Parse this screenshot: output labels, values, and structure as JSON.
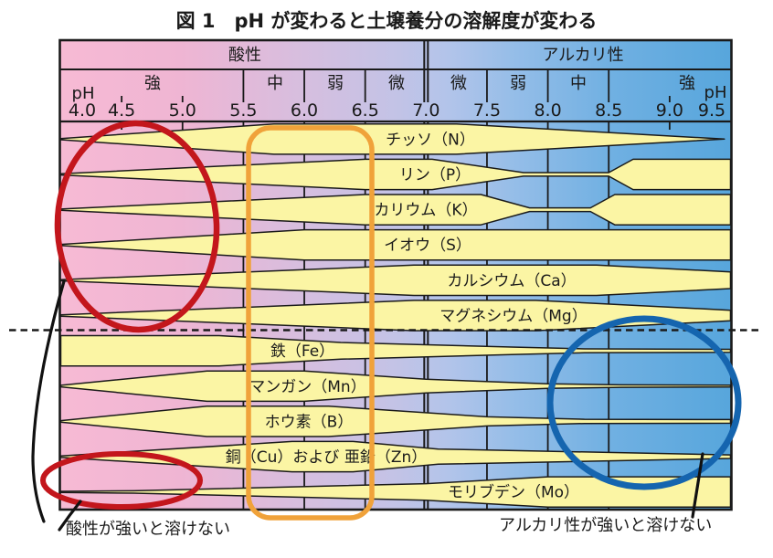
{
  "title": "図 1　pH が変わると土壌養分の溶解度が変わる",
  "header": {
    "acidity_label": "酸性",
    "alkalinity_label": "アルカリ性",
    "ph_label_left": "pH",
    "ph_label_right": "pH",
    "acid_levels": [
      "強",
      "中",
      "弱",
      "微"
    ],
    "alkali_levels": [
      "微",
      "弱",
      "中",
      "強"
    ],
    "ph_ticks": [
      "4.0",
      "4.5",
      "5.0",
      "5.5",
      "6.0",
      "6.5",
      "7.0",
      "7.5",
      "8.0",
      "8.5",
      "9.0",
      "9.5"
    ]
  },
  "chart_data": {
    "type": "area",
    "x_axis": {
      "label": "pH",
      "min": 4.0,
      "max": 9.5
    },
    "profile_format": "[pH, relative solubility band width 0–1]",
    "nutrients": [
      {
        "label": "チッソ（N）",
        "symbol": "N",
        "profile": [
          [
            4.0,
            0.04
          ],
          [
            5.75,
            1
          ],
          [
            7.25,
            1
          ],
          [
            9.45,
            0
          ]
        ]
      },
      {
        "label": "リン（P）",
        "symbol": "P",
        "profile": [
          [
            4.0,
            0.04
          ],
          [
            6.5,
            1
          ],
          [
            7.05,
            1
          ],
          [
            7.8,
            0.12
          ],
          [
            8.5,
            0.12
          ],
          [
            8.7,
            1
          ],
          [
            9.5,
            1
          ]
        ]
      },
      {
        "label": "カリウム（K）",
        "symbol": "K",
        "profile": [
          [
            4.0,
            0.04
          ],
          [
            6.5,
            1
          ],
          [
            7.45,
            1
          ],
          [
            7.85,
            0.12
          ],
          [
            8.35,
            0.12
          ],
          [
            8.55,
            1
          ],
          [
            9.5,
            1
          ]
        ]
      },
      {
        "label": "イオウ（S）",
        "symbol": "S",
        "profile": [
          [
            4.0,
            0.04
          ],
          [
            6.0,
            1
          ],
          [
            9.5,
            1
          ]
        ]
      },
      {
        "label": "カルシウム（Ca）",
        "symbol": "Ca",
        "profile": [
          [
            4.0,
            0.04
          ],
          [
            6.9,
            1
          ],
          [
            8.4,
            1
          ],
          [
            9.5,
            0.55
          ]
        ]
      },
      {
        "label": "マグネシウム（Mg）",
        "symbol": "Mg",
        "profile": [
          [
            4.0,
            0.04
          ],
          [
            6.9,
            1
          ],
          [
            7.9,
            1
          ],
          [
            9.5,
            0.35
          ]
        ]
      },
      {
        "label": "鉄（Fe）",
        "symbol": "Fe",
        "profile": [
          [
            4.0,
            1
          ],
          [
            5.3,
            1
          ],
          [
            6.3,
            0.55
          ],
          [
            7.7,
            0.25
          ],
          [
            8.3,
            0.13
          ],
          [
            9.5,
            0.1
          ]
        ]
      },
      {
        "label": "マンガン（Mn）",
        "symbol": "Mn",
        "profile": [
          [
            4.0,
            0.05
          ],
          [
            5.2,
            1
          ],
          [
            6.0,
            1
          ],
          [
            7.0,
            0.45
          ],
          [
            8.0,
            0.15
          ],
          [
            8.6,
            0.08
          ],
          [
            9.5,
            0.06
          ]
        ]
      },
      {
        "label": "ホウ素（B）",
        "symbol": "B",
        "profile": [
          [
            4.0,
            0.05
          ],
          [
            5.2,
            1
          ],
          [
            6.2,
            1
          ],
          [
            7.5,
            0.3
          ],
          [
            8.3,
            0.14
          ],
          [
            9.5,
            0.12
          ]
        ]
      },
      {
        "label": "銅（Cu）および 亜鉛（Zn）",
        "symbol": "Cu/Zn",
        "profile": [
          [
            4.0,
            0.05
          ],
          [
            5.9,
            1
          ],
          [
            6.4,
            1
          ],
          [
            7.1,
            0.5
          ],
          [
            9.5,
            0.12
          ]
        ]
      },
      {
        "label": "モリブデン（Mo）",
        "symbol": "Mo",
        "profile": [
          [
            4.0,
            0.04
          ],
          [
            4.6,
            0.08
          ],
          [
            7.0,
            0.55
          ],
          [
            8.0,
            1
          ],
          [
            9.5,
            1
          ]
        ]
      }
    ],
    "highlights": [
      {
        "shape": "ellipse",
        "color": "#c3161c",
        "meaning": "酸性が強いと溶けない",
        "ph_range": [
          4.0,
          5.3
        ],
        "rows": "チッソ〜マグネシウム"
      },
      {
        "shape": "ellipse",
        "color": "#c3161c",
        "meaning": "酸性が強いと溶けない",
        "ph_range": [
          4.0,
          5.2
        ],
        "rows": "モリブデン"
      },
      {
        "shape": "rounded-rect",
        "color": "#f0a23a",
        "ph_range": [
          5.5,
          6.5
        ],
        "rows": "全養分"
      },
      {
        "shape": "ellipse",
        "color": "#1565af",
        "meaning": "アルカリ性が強いと溶けない",
        "ph_range": [
          8.1,
          9.5
        ],
        "rows": "鉄〜モリブデン"
      }
    ]
  },
  "notes": {
    "bottom_left": "酸性が強いと溶けない",
    "bottom_right": "アルカリ性が強いと溶けない"
  },
  "colors": {
    "band_fill": "#fbf5a4",
    "outline": "#1a1a1a",
    "acid_side": "#f6b9d4",
    "neutral_mid": "#c4c3e6",
    "alkali_side": "#58a7dd",
    "red_annotation": "#c3161c",
    "orange_annotation": "#f0a23a",
    "blue_annotation": "#1565af"
  }
}
